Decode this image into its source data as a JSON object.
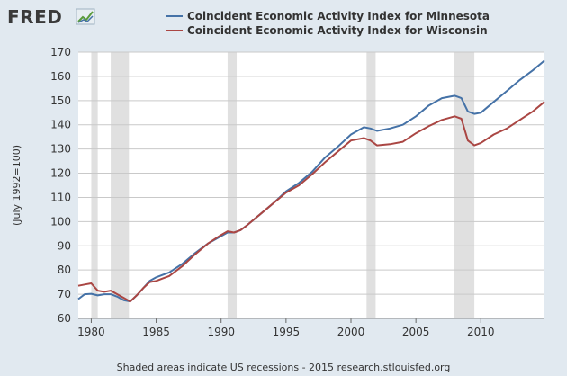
{
  "logo": {
    "text": "FRED",
    "icon": "line-chart-icon"
  },
  "chart_data": {
    "type": "line",
    "title": "",
    "xlabel": "",
    "ylabel": "(July 1992=100)",
    "xlim": [
      1979,
      2014.9
    ],
    "ylim": [
      60,
      170
    ],
    "yticks": [
      60,
      70,
      80,
      90,
      100,
      110,
      120,
      130,
      140,
      150,
      160,
      170
    ],
    "xticks": [
      1980,
      1985,
      1990,
      1995,
      2000,
      2005,
      2010
    ],
    "grid": true,
    "legend_position": "top",
    "recessions": [
      [
        1980.0,
        1980.5
      ],
      [
        1981.5,
        1982.9
      ],
      [
        1990.5,
        1991.2
      ],
      [
        2001.2,
        2001.9
      ],
      [
        2007.9,
        2009.5
      ]
    ],
    "series": [
      {
        "name": "Coincident Economic Activity Index for Minnesota",
        "color": "#4572a7",
        "points": [
          [
            1979.0,
            68
          ],
          [
            1979.5,
            70
          ],
          [
            1980.0,
            70.2
          ],
          [
            1980.5,
            69.5
          ],
          [
            1981.0,
            70
          ],
          [
            1981.5,
            70
          ],
          [
            1982.0,
            69
          ],
          [
            1982.5,
            67.5
          ],
          [
            1983.0,
            67
          ],
          [
            1983.5,
            69.5
          ],
          [
            1984.0,
            72.5
          ],
          [
            1984.5,
            75.5
          ],
          [
            1985.0,
            77
          ],
          [
            1985.5,
            78
          ],
          [
            1986.0,
            79
          ],
          [
            1987.0,
            82.5
          ],
          [
            1988.0,
            87
          ],
          [
            1989.0,
            91
          ],
          [
            1990.0,
            94
          ],
          [
            1990.5,
            95.5
          ],
          [
            1991.0,
            95.5
          ],
          [
            1991.5,
            96.5
          ],
          [
            1992.0,
            98.5
          ],
          [
            1993.0,
            103
          ],
          [
            1994.0,
            107.5
          ],
          [
            1995.0,
            112.5
          ],
          [
            1996.0,
            116
          ],
          [
            1997.0,
            120.5
          ],
          [
            1998.0,
            126.5
          ],
          [
            1999.0,
            131
          ],
          [
            2000.0,
            136
          ],
          [
            2001.0,
            139
          ],
          [
            2001.5,
            138.5
          ],
          [
            2002.0,
            137.5
          ],
          [
            2003.0,
            138.5
          ],
          [
            2004.0,
            140
          ],
          [
            2005.0,
            143.5
          ],
          [
            2006.0,
            148
          ],
          [
            2007.0,
            151
          ],
          [
            2008.0,
            152
          ],
          [
            2008.5,
            151
          ],
          [
            2009.0,
            145.5
          ],
          [
            2009.5,
            144.5
          ],
          [
            2010.0,
            145
          ],
          [
            2011.0,
            149.5
          ],
          [
            2012.0,
            154
          ],
          [
            2013.0,
            158.5
          ],
          [
            2014.0,
            162.5
          ],
          [
            2014.9,
            166.5
          ]
        ]
      },
      {
        "name": "Coincident Economic Activity Index for Wisconsin",
        "color": "#aa4643",
        "points": [
          [
            1979.0,
            73.5
          ],
          [
            1979.5,
            74
          ],
          [
            1980.0,
            74.5
          ],
          [
            1980.5,
            71.5
          ],
          [
            1981.0,
            71
          ],
          [
            1981.5,
            71.5
          ],
          [
            1982.0,
            70
          ],
          [
            1982.5,
            68.5
          ],
          [
            1983.0,
            67
          ],
          [
            1983.5,
            69.5
          ],
          [
            1984.0,
            72.5
          ],
          [
            1984.5,
            75
          ],
          [
            1985.0,
            75.5
          ],
          [
            1985.5,
            76.5
          ],
          [
            1986.0,
            77.5
          ],
          [
            1987.0,
            81.5
          ],
          [
            1988.0,
            86.5
          ],
          [
            1989.0,
            91
          ],
          [
            1990.0,
            94.5
          ],
          [
            1990.5,
            96
          ],
          [
            1991.0,
            95.5
          ],
          [
            1991.5,
            96.5
          ],
          [
            1992.0,
            98.5
          ],
          [
            1993.0,
            103
          ],
          [
            1994.0,
            107.5
          ],
          [
            1995.0,
            112
          ],
          [
            1996.0,
            115
          ],
          [
            1997.0,
            119.5
          ],
          [
            1998.0,
            124.5
          ],
          [
            1999.0,
            129
          ],
          [
            2000.0,
            133.5
          ],
          [
            2001.0,
            134.5
          ],
          [
            2001.5,
            133.5
          ],
          [
            2002.0,
            131.5
          ],
          [
            2003.0,
            132
          ],
          [
            2004.0,
            133
          ],
          [
            2005.0,
            136.5
          ],
          [
            2006.0,
            139.5
          ],
          [
            2007.0,
            142
          ],
          [
            2008.0,
            143.5
          ],
          [
            2008.5,
            142.5
          ],
          [
            2009.0,
            133.5
          ],
          [
            2009.5,
            131.5
          ],
          [
            2010.0,
            132.5
          ],
          [
            2011.0,
            136
          ],
          [
            2012.0,
            138.5
          ],
          [
            2013.0,
            142
          ],
          [
            2014.0,
            145.5
          ],
          [
            2014.9,
            149.5
          ]
        ]
      }
    ]
  },
  "footer": {
    "text": "Shaded areas indicate US recessions - 2015 research.stlouisfed.org"
  }
}
